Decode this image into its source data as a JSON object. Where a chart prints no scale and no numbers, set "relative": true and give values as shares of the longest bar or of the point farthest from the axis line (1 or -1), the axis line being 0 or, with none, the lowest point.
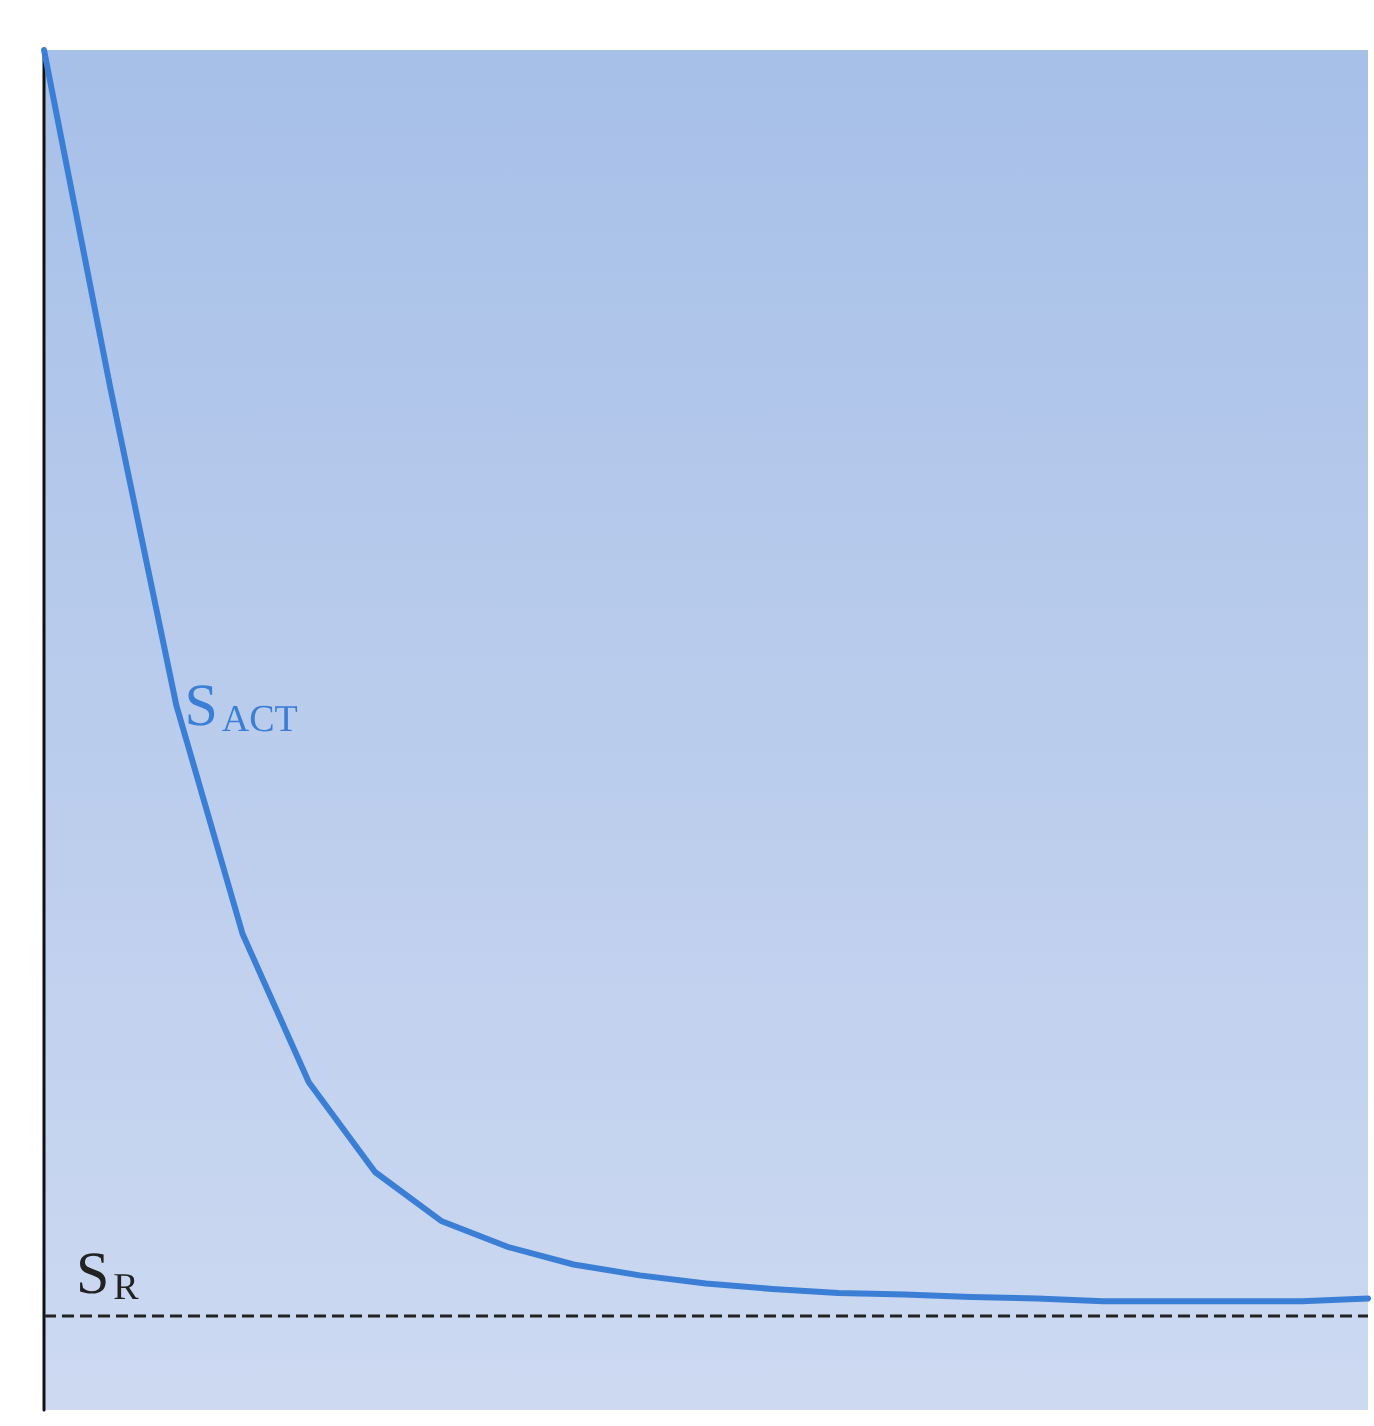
{
  "chart_data": {
    "type": "line",
    "relative": true,
    "categories": [
      null,
      null,
      null,
      null,
      null,
      null,
      null,
      null,
      null,
      null,
      null,
      null,
      null,
      null,
      null,
      null,
      null,
      null,
      null,
      null,
      null
    ],
    "series": [
      {
        "name": "S$_{ACT}$",
        "color": "#3a7fd5",
        "values": [
          1,
          0.752,
          0.518,
          0.35,
          0.241,
          0.175,
          0.139,
          0.12,
          0.107,
          0.099,
          0.093,
          0.089,
          0.086,
          0.085,
          0.083,
          0.082,
          0.08,
          0.08,
          0.08,
          0.08,
          0.082
        ]
      }
    ],
    "ref_lines": [
      {
        "axis": "y",
        "value": 0.072,
        "label": "S$_{R}$",
        "color": "#222222",
        "line_style": "dashed"
      }
    ],
    "grid": false,
    "legend": false,
    "marker": "none",
    "line_style": "solid"
  }
}
